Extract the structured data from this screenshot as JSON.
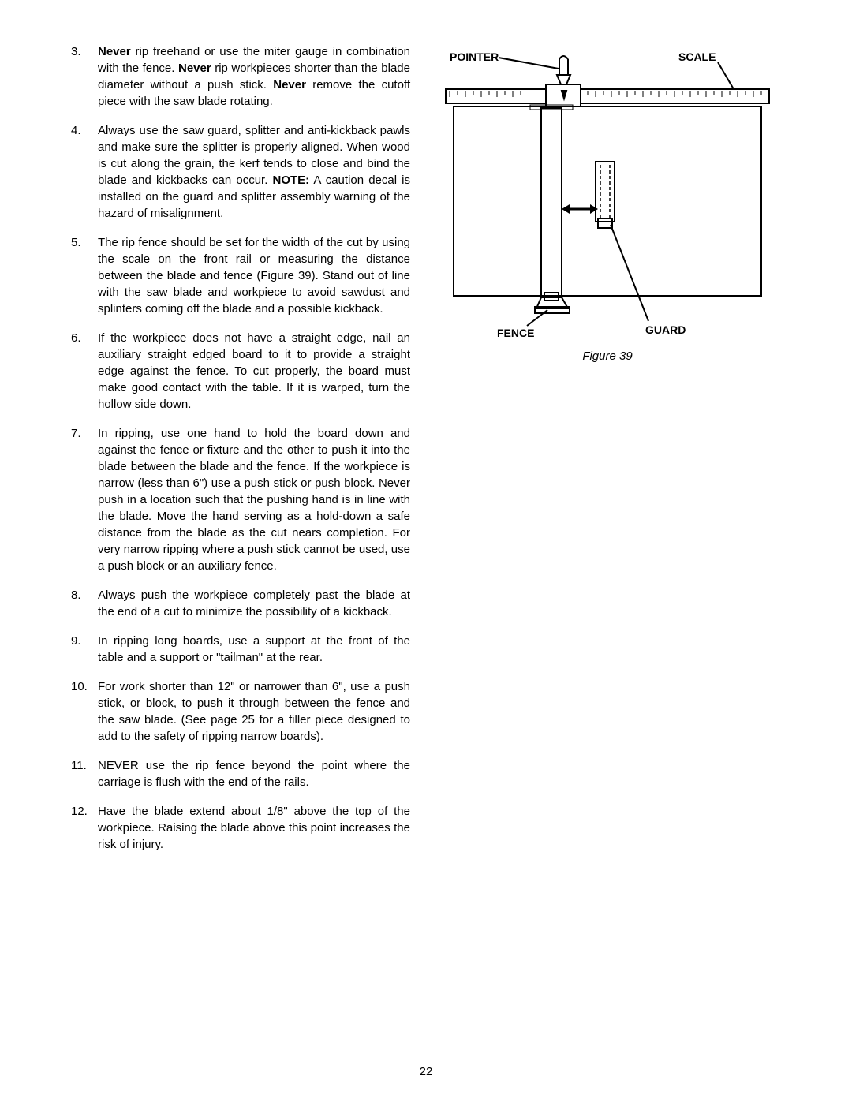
{
  "page_number": "22",
  "items": [
    {
      "num": "3.",
      "html": "<span class='bold'>Never</span> rip freehand or use the miter gauge in combination with the fence. <span class='bold'>Never</span> rip workpieces shorter than the blade diameter without a push stick. <span class='bold'>Never</span> remove the cutoff piece with the saw blade rotating."
    },
    {
      "num": "4.",
      "html": "Always use the saw guard, splitter and anti-kickback pawls and make sure the splitter is properly aligned. When wood is cut along the grain, the kerf tends to close and bind the blade and kickbacks can occur. <span class='bold'>NOTE:</span> A caution decal is installed on the guard and splitter assembly warning of the hazard of misalignment."
    },
    {
      "num": "5.",
      "html": "The rip fence should be set for the width of the cut by using the scale on the front rail or measuring the distance between the blade and fence (Figure 39). Stand out of line with the saw blade and workpiece to avoid sawdust and splinters coming off the blade and a possible kickback."
    },
    {
      "num": "6.",
      "html": "If the workpiece does not have a straight edge, nail an auxiliary straight edged board to it to provide a straight edge against the fence. To cut properly, the board must make good contact with the table. If it is warped, turn the hollow side down."
    },
    {
      "num": "7.",
      "html": "In ripping, use one hand to hold the board down and against the fence or fixture and the other to push it into the blade between the blade and the fence. If the workpiece is narrow (less than 6\") use a push stick or push block. Never push in a location such that the pushing hand is in line with the blade. Move the hand serving as a hold-down a safe distance from the blade as the cut nears completion. For very narrow ripping where a push stick cannot be used, use a push block or an auxiliary fence."
    },
    {
      "num": "8.",
      "html": "Always push the workpiece completely past the blade at the end of a cut to minimize the possibility of a kickback."
    },
    {
      "num": "9.",
      "html": "In ripping long boards, use a support at the front of the table and a support or \"tailman\" at the rear."
    },
    {
      "num": "10.",
      "html": "For work shorter than 12\" or narrower than 6\", use a push stick, or block, to push it through between the fence and the saw blade. (See page 25 for a filler piece designed to add to the safety of ripping narrow boards)."
    },
    {
      "num": "11.",
      "html": "NEVER use the rip fence beyond the point where the carriage is flush with the end of the rails."
    },
    {
      "num": "12.",
      "html": "Have the blade extend about 1/8\" above the top of the workpiece. Raising the blade above this point increases the risk of injury."
    }
  ],
  "figure": {
    "caption": "Figure 39",
    "labels": {
      "pointer": "POINTER",
      "scale": "SCALE",
      "fence": "FENCE",
      "guard": "GUARD"
    },
    "colors": {
      "stroke": "#000000",
      "fill_bg": "none",
      "label_font": "Arial",
      "label_weight": "bold",
      "label_size": 14
    }
  }
}
